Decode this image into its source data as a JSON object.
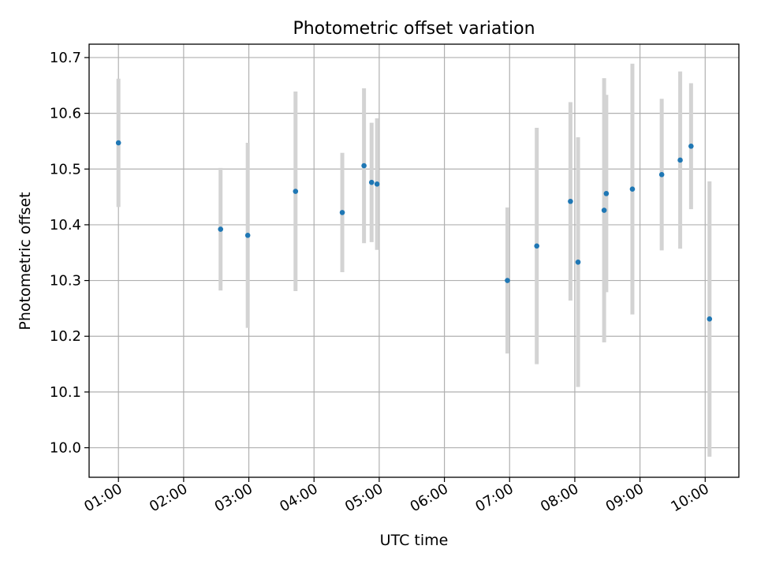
{
  "chart_data": {
    "type": "scatter",
    "title": "Photometric offset variation",
    "xlabel": "UTC time",
    "ylabel": "Photometric offset",
    "x_ticks": [
      "01:00",
      "02:00",
      "03:00",
      "04:00",
      "05:00",
      "06:00",
      "07:00",
      "08:00",
      "09:00",
      "10:00"
    ],
    "y_ticks": [
      "10.0",
      "10.1",
      "10.2",
      "10.3",
      "10.4",
      "10.5",
      "10.6",
      "10.7"
    ],
    "xlim": [
      "00:33",
      "10:31"
    ],
    "ylim": [
      9.947,
      10.724
    ],
    "grid": true,
    "colors": {
      "point": "#1f77b4",
      "errorbar": "#d3d3d3",
      "grid": "#b0b0b0"
    },
    "points": [
      {
        "x": "01:00",
        "y": 10.547,
        "err": 0.115
      },
      {
        "x": "02:34",
        "y": 10.392,
        "err": 0.11
      },
      {
        "x": "02:59",
        "y": 10.381,
        "err": 0.166
      },
      {
        "x": "03:43",
        "y": 10.46,
        "err": 0.179
      },
      {
        "x": "04:26",
        "y": 10.422,
        "err": 0.107
      },
      {
        "x": "04:46",
        "y": 10.506,
        "err": 0.139
      },
      {
        "x": "04:53",
        "y": 10.476,
        "err": 0.107
      },
      {
        "x": "04:58",
        "y": 10.473,
        "err": 0.118
      },
      {
        "x": "06:58",
        "y": 10.3,
        "err": 0.131
      },
      {
        "x": "07:25",
        "y": 10.362,
        "err": 0.212
      },
      {
        "x": "07:56",
        "y": 10.442,
        "err": 0.178
      },
      {
        "x": "08:03",
        "y": 10.333,
        "err": 0.224
      },
      {
        "x": "08:27",
        "y": 10.426,
        "err": 0.237
      },
      {
        "x": "08:29",
        "y": 10.456,
        "err": 0.177
      },
      {
        "x": "08:53",
        "y": 10.464,
        "err": 0.225
      },
      {
        "x": "09:20",
        "y": 10.49,
        "err": 0.136
      },
      {
        "x": "09:37",
        "y": 10.516,
        "err": 0.159
      },
      {
        "x": "09:47",
        "y": 10.541,
        "err": 0.113
      },
      {
        "x": "10:04",
        "y": 10.231,
        "err": 0.247
      }
    ]
  }
}
